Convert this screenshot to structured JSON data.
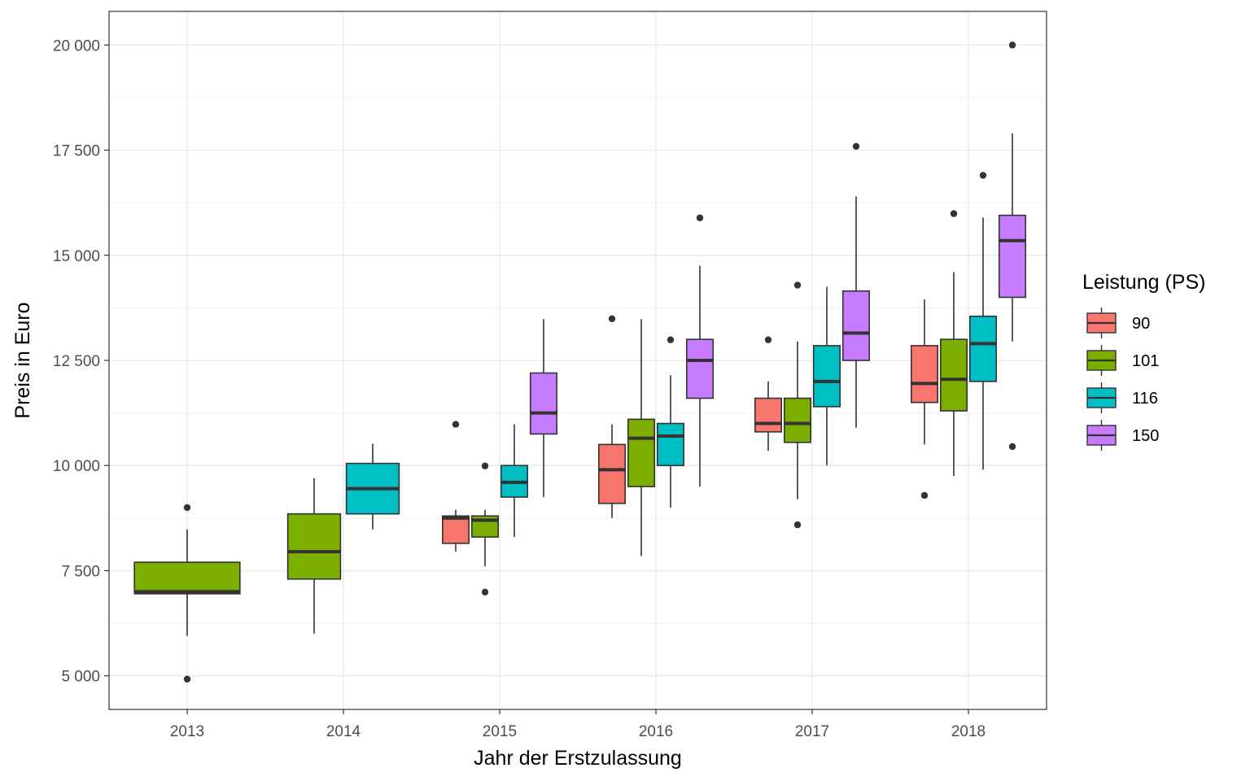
{
  "chart_data": {
    "type": "boxplot",
    "xlabel": "Jahr der Erstzulassung",
    "ylabel": "Preis in Euro",
    "ylim": [
      4200,
      20800
    ],
    "y_ticks": [
      5000,
      7500,
      10000,
      12500,
      15000,
      17500,
      20000
    ],
    "y_tick_labels": [
      "5 000",
      "7 500",
      "10 000",
      "12 500",
      "15 000",
      "17 500",
      "20 000"
    ],
    "categories": [
      "2013",
      "2014",
      "2015",
      "2016",
      "2017",
      "2018"
    ],
    "grid": true,
    "legend": {
      "title": "Leistung (PS)",
      "position": "right",
      "entries": [
        {
          "label": "90",
          "color": "#F8766D"
        },
        {
          "label": "101",
          "color": "#7CAE00"
        },
        {
          "label": "116",
          "color": "#00BFC4"
        },
        {
          "label": "150",
          "color": "#C77CFF"
        }
      ]
    },
    "groups": [
      {
        "year": "2013",
        "boxes": [
          {
            "ps": "101",
            "whisker_low": 5950,
            "q1": 6950,
            "median": 7000,
            "q3": 7700,
            "whisker_high": 8480,
            "outliers": [
              9000,
              4920
            ]
          }
        ]
      },
      {
        "year": "2014",
        "boxes": [
          {
            "ps": "101",
            "whisker_low": 6000,
            "q1": 7300,
            "median": 7950,
            "q3": 8850,
            "whisker_high": 9700,
            "outliers": []
          },
          {
            "ps": "116",
            "whisker_low": 8480,
            "q1": 8850,
            "median": 9450,
            "q3": 10050,
            "whisker_high": 10520,
            "outliers": []
          }
        ]
      },
      {
        "year": "2015",
        "boxes": [
          {
            "ps": "90",
            "whisker_low": 7950,
            "q1": 8150,
            "median": 8750,
            "q3": 8800,
            "whisker_high": 8950,
            "outliers": [
              10980
            ]
          },
          {
            "ps": "101",
            "whisker_low": 7600,
            "q1": 8300,
            "median": 8700,
            "q3": 8800,
            "whisker_high": 8950,
            "outliers": [
              9990,
              6990
            ]
          },
          {
            "ps": "116",
            "whisker_low": 8300,
            "q1": 9250,
            "median": 9600,
            "q3": 10000,
            "whisker_high": 10980,
            "outliers": []
          },
          {
            "ps": "150",
            "whisker_low": 9250,
            "q1": 10750,
            "median": 11250,
            "q3": 12200,
            "whisker_high": 13480,
            "outliers": []
          }
        ]
      },
      {
        "year": "2016",
        "boxes": [
          {
            "ps": "90",
            "whisker_low": 8750,
            "q1": 9100,
            "median": 9900,
            "q3": 10500,
            "whisker_high": 10980,
            "outliers": [
              13490
            ]
          },
          {
            "ps": "101",
            "whisker_low": 7850,
            "q1": 9500,
            "median": 10650,
            "q3": 11100,
            "whisker_high": 13480,
            "outliers": []
          },
          {
            "ps": "116",
            "whisker_low": 9000,
            "q1": 10000,
            "median": 10700,
            "q3": 11000,
            "whisker_high": 12150,
            "outliers": [
              12990
            ]
          },
          {
            "ps": "150",
            "whisker_low": 9500,
            "q1": 11600,
            "median": 12500,
            "q3": 13000,
            "whisker_high": 14750,
            "outliers": [
              15890
            ]
          }
        ]
      },
      {
        "year": "2017",
        "boxes": [
          {
            "ps": "90",
            "whisker_low": 10350,
            "q1": 10800,
            "median": 11000,
            "q3": 11600,
            "whisker_high": 12000,
            "outliers": [
              12990
            ]
          },
          {
            "ps": "101",
            "whisker_low": 9200,
            "q1": 10550,
            "median": 11000,
            "q3": 11600,
            "whisker_high": 12950,
            "outliers": [
              14290,
              8590
            ]
          },
          {
            "ps": "116",
            "whisker_low": 10000,
            "q1": 11400,
            "median": 12000,
            "q3": 12850,
            "whisker_high": 14250,
            "outliers": []
          },
          {
            "ps": "150",
            "whisker_low": 10900,
            "q1": 12500,
            "median": 13150,
            "q3": 14150,
            "whisker_high": 16400,
            "outliers": [
              17590
            ]
          }
        ]
      },
      {
        "year": "2018",
        "boxes": [
          {
            "ps": "90",
            "whisker_low": 10500,
            "q1": 11500,
            "median": 11950,
            "q3": 12850,
            "whisker_high": 13950,
            "outliers": [
              9290
            ]
          },
          {
            "ps": "101",
            "whisker_low": 9750,
            "q1": 11300,
            "median": 12050,
            "q3": 13000,
            "whisker_high": 14600,
            "outliers": [
              15990
            ]
          },
          {
            "ps": "116",
            "whisker_low": 9900,
            "q1": 12000,
            "median": 12900,
            "q3": 13550,
            "whisker_high": 15900,
            "outliers": [
              16900
            ]
          },
          {
            "ps": "150",
            "whisker_low": 12950,
            "q1": 14000,
            "median": 15350,
            "q3": 15950,
            "whisker_high": 17900,
            "outliers": [
              20000,
              10450
            ]
          }
        ]
      }
    ]
  }
}
